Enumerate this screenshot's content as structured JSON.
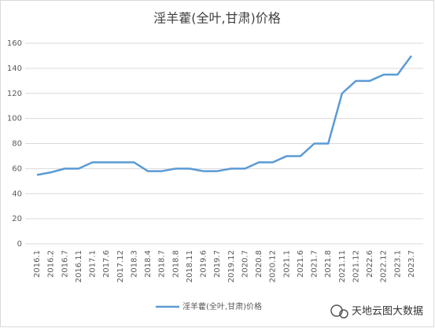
{
  "chart_data": {
    "type": "line",
    "title": "淫羊藿(全叶,甘肃)价格",
    "categories": [
      "2016.1",
      "2016.2",
      "2016.7",
      "2016.11",
      "2017.1",
      "2017.6",
      "2017.12",
      "2018.3",
      "2018.4",
      "2018.7",
      "2018.8",
      "2018.11",
      "2019.6",
      "2019.7",
      "2019.12",
      "2020.7",
      "2020.8",
      "2020.12",
      "2021.1",
      "2021.6",
      "2021.7",
      "2021.8",
      "2021.11",
      "2021.12",
      "2022.6",
      "2022.12",
      "2023.1",
      "2023.7"
    ],
    "series": [
      {
        "name": "淫羊藿(全叶,甘肃)价格",
        "color": "#5b9bd5",
        "values": [
          55,
          57,
          60,
          60,
          65,
          65,
          65,
          65,
          58,
          58,
          60,
          60,
          58,
          58,
          60,
          60,
          65,
          65,
          70,
          70,
          80,
          80,
          120,
          130,
          130,
          135,
          135,
          150
        ]
      }
    ],
    "ylim": [
      0,
      160
    ],
    "yticks": [
      0,
      20,
      40,
      60,
      80,
      100,
      120,
      140,
      160
    ],
    "grid": true,
    "legend": "bottom"
  },
  "watermark": "天地云图大数据"
}
